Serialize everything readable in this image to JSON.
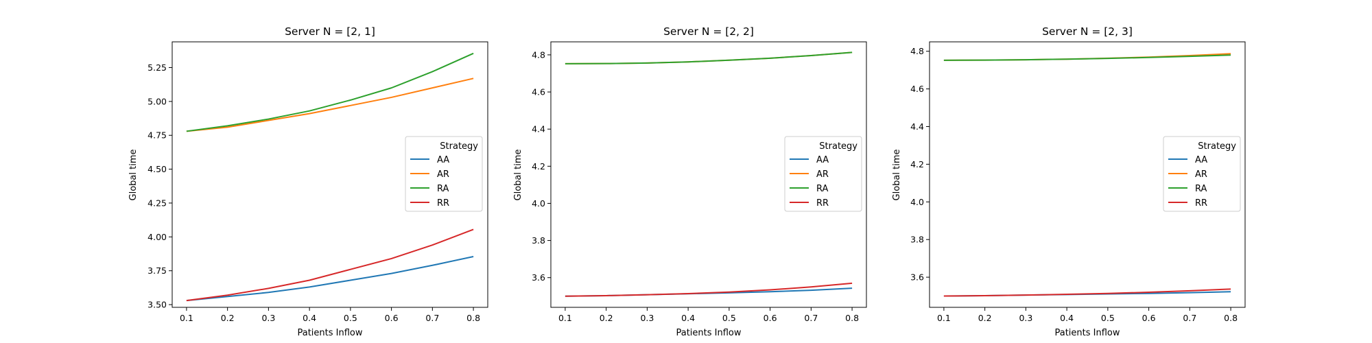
{
  "chart_data": [
    {
      "type": "line",
      "title": "Server N = [2, 1]",
      "xlabel": "Patients Inflow",
      "ylabel": "Global time",
      "xlim": [
        0.065,
        0.835
      ],
      "ylim": [
        3.48,
        5.44
      ],
      "xticks": [
        "0.1",
        "0.2",
        "0.3",
        "0.4",
        "0.5",
        "0.6",
        "0.7",
        "0.8"
      ],
      "yticks": [
        "3.50",
        "3.75",
        "4.00",
        "4.25",
        "4.50",
        "4.75",
        "5.00",
        "5.25"
      ],
      "x": [
        0.1,
        0.2,
        0.3,
        0.4,
        0.5,
        0.6,
        0.7,
        0.8
      ],
      "series": [
        {
          "name": "AA",
          "color": "#1f77b4",
          "values": [
            3.53,
            3.56,
            3.59,
            3.63,
            3.68,
            3.73,
            3.79,
            3.855
          ]
        },
        {
          "name": "AR",
          "color": "#ff7f0e",
          "values": [
            4.78,
            4.81,
            4.86,
            4.91,
            4.97,
            5.03,
            5.1,
            5.17
          ]
        },
        {
          "name": "RA",
          "color": "#2ca02c",
          "values": [
            4.78,
            4.82,
            4.87,
            4.93,
            5.01,
            5.1,
            5.22,
            5.355
          ]
        },
        {
          "name": "RR",
          "color": "#d62728",
          "values": [
            3.53,
            3.57,
            3.62,
            3.68,
            3.76,
            3.84,
            3.94,
            4.055
          ]
        }
      ],
      "legend": {
        "title": "Strategy",
        "placement": "center-right"
      }
    },
    {
      "type": "line",
      "title": "Server N = [2, 2]",
      "xlabel": "Patients Inflow",
      "ylabel": "Global time",
      "xlim": [
        0.065,
        0.835
      ],
      "ylim": [
        3.44,
        4.87
      ],
      "xticks": [
        "0.1",
        "0.2",
        "0.3",
        "0.4",
        "0.5",
        "0.6",
        "0.7",
        "0.8"
      ],
      "yticks": [
        "3.6",
        "3.8",
        "4.0",
        "4.2",
        "4.4",
        "4.6",
        "4.8"
      ],
      "x": [
        0.1,
        0.2,
        0.3,
        0.4,
        0.5,
        0.6,
        0.7,
        0.8
      ],
      "series": [
        {
          "name": "AA",
          "color": "#1f77b4",
          "values": [
            3.5,
            3.503,
            3.508,
            3.513,
            3.518,
            3.524,
            3.532,
            3.543
          ]
        },
        {
          "name": "AR",
          "color": "#ff7f0e",
          "values": [
            4.752,
            4.753,
            4.756,
            4.762,
            4.771,
            4.782,
            4.796,
            4.813
          ]
        },
        {
          "name": "RA",
          "color": "#2ca02c",
          "values": [
            4.752,
            4.753,
            4.756,
            4.762,
            4.771,
            4.782,
            4.796,
            4.813
          ]
        },
        {
          "name": "RR",
          "color": "#d62728",
          "values": [
            3.5,
            3.503,
            3.508,
            3.514,
            3.522,
            3.534,
            3.55,
            3.57
          ]
        }
      ],
      "legend": {
        "title": "Strategy",
        "placement": "center-right"
      }
    },
    {
      "type": "line",
      "title": "Server N = [2, 3]",
      "xlabel": "Patients Inflow",
      "ylabel": "Global time",
      "xlim": [
        0.065,
        0.835
      ],
      "ylim": [
        3.44,
        4.85
      ],
      "xticks": [
        "0.1",
        "0.2",
        "0.3",
        "0.4",
        "0.5",
        "0.6",
        "0.7",
        "0.8"
      ],
      "yticks": [
        "3.6",
        "3.8",
        "4.0",
        "4.2",
        "4.4",
        "4.6",
        "4.8"
      ],
      "x": [
        0.1,
        0.2,
        0.3,
        0.4,
        0.5,
        0.6,
        0.7,
        0.8
      ],
      "series": [
        {
          "name": "AA",
          "color": "#1f77b4",
          "values": [
            3.5,
            3.502,
            3.505,
            3.508,
            3.511,
            3.514,
            3.518,
            3.523
          ]
        },
        {
          "name": "AR",
          "color": "#ff7f0e",
          "values": [
            4.752,
            4.753,
            4.755,
            4.758,
            4.763,
            4.769,
            4.777,
            4.787
          ]
        },
        {
          "name": "RA",
          "color": "#2ca02c",
          "values": [
            4.752,
            4.753,
            4.755,
            4.758,
            4.762,
            4.767,
            4.773,
            4.78
          ]
        },
        {
          "name": "RR",
          "color": "#d62728",
          "values": [
            3.5,
            3.502,
            3.505,
            3.509,
            3.514,
            3.52,
            3.528,
            3.537
          ]
        }
      ],
      "legend": {
        "title": "Strategy",
        "placement": "center-right"
      }
    }
  ]
}
